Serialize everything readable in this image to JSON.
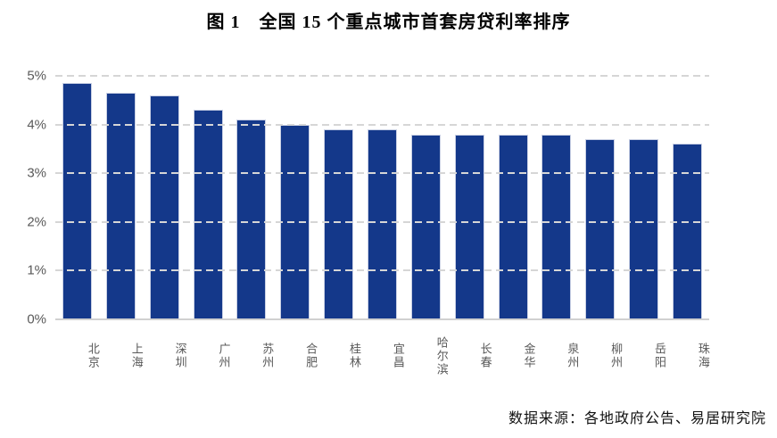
{
  "title": "图 1　全国 15 个重点城市首套房贷利率排序",
  "source": "数据来源：各地政府公告、易居研究院",
  "colors": {
    "bar": "#14388a",
    "bar_edge": "#c9d0e4",
    "gridline": "#d6d6d6",
    "baseline": "#d0d0d0",
    "axis_text": "#595959",
    "title_text": "#000000"
  },
  "chart_data": {
    "type": "bar",
    "title": "图 1　全国 15 个重点城市首套房贷利率排序",
    "categories": [
      "北京",
      "上海",
      "深圳",
      "广州",
      "苏州",
      "合肥",
      "桂林",
      "宜昌",
      "哈尔滨",
      "长春",
      "金华",
      "泉州",
      "柳州",
      "岳阳",
      "珠海"
    ],
    "values": [
      4.85,
      4.65,
      4.6,
      4.3,
      4.1,
      4.0,
      3.9,
      3.9,
      3.8,
      3.8,
      3.8,
      3.8,
      3.7,
      3.7,
      3.6
    ],
    "unit": "%",
    "xlabel": "",
    "ylabel": "",
    "ylim": [
      0,
      5
    ],
    "yticks": [
      "0%",
      "1%",
      "2%",
      "3%",
      "4%",
      "5%"
    ],
    "grid": "horizontal-dashed",
    "legend": "none",
    "bar_color": "#14388a",
    "source_note": "数据来源：各地政府公告、易居研究院"
  }
}
